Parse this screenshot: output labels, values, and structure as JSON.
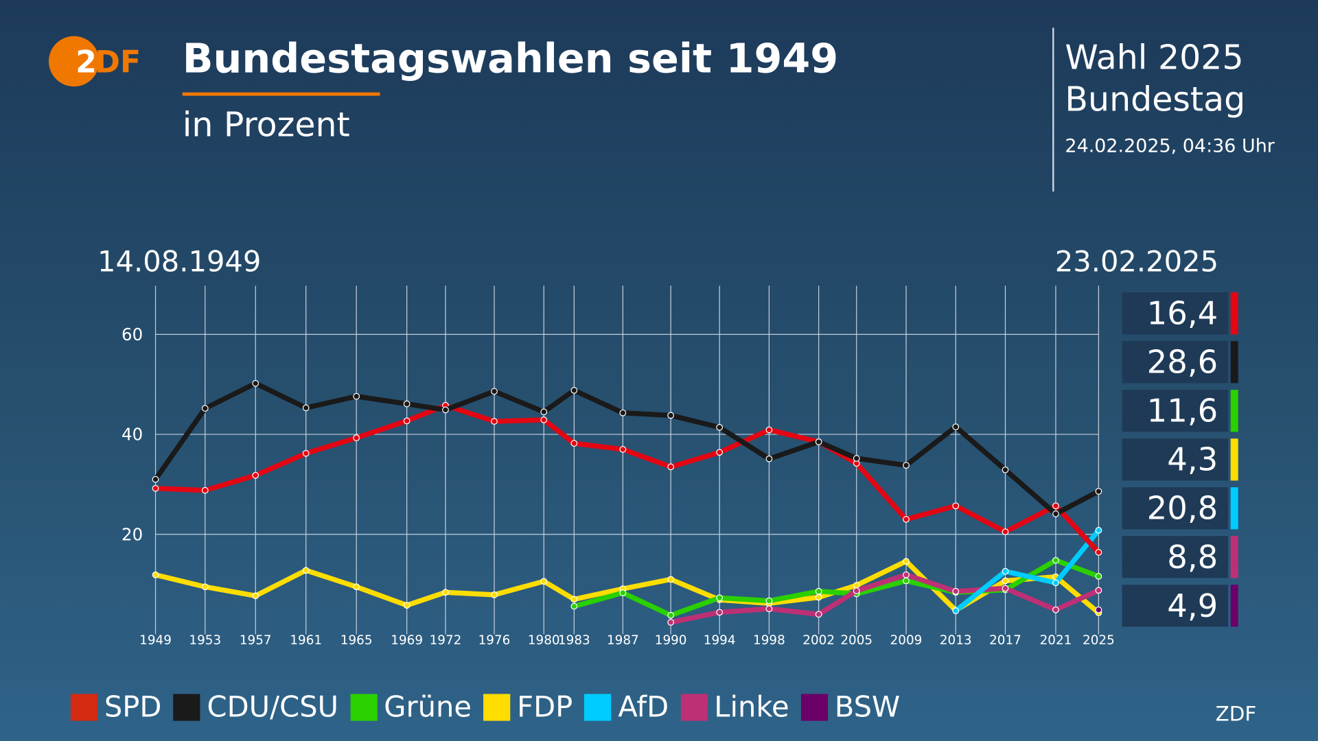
{
  "header": {
    "title": "Bundestagswahlen seit 1949",
    "subtitle": "in Prozent",
    "logo": "ZDF"
  },
  "info": {
    "line1": "Wahl 2025",
    "line2": "Bundestag",
    "timestamp": "24.02.2025, 04:36 Uhr"
  },
  "footer": {
    "source": "ZDF"
  },
  "chart_data": {
    "type": "line",
    "start_label": "14.08.1949",
    "end_label": "23.02.2025",
    "x": [
      1949,
      1953,
      1957,
      1961,
      1965,
      1969,
      1972,
      1976,
      1980,
      1983,
      1987,
      1990,
      1994,
      1998,
      2002,
      2005,
      2009,
      2013,
      2017,
      2021,
      2025
    ],
    "yticks": [
      20,
      40,
      60
    ],
    "ylim": [
      0,
      68
    ],
    "grid": true,
    "legend": "bottom",
    "series": [
      {
        "name": "SPD",
        "color": "#e30613",
        "values": [
          29.2,
          28.8,
          31.8,
          36.2,
          39.3,
          42.7,
          45.8,
          42.6,
          42.9,
          38.2,
          37.0,
          33.5,
          36.4,
          40.9,
          38.5,
          34.2,
          23.0,
          25.7,
          20.5,
          25.7,
          16.4
        ],
        "latest": "16,4"
      },
      {
        "name": "CDU/CSU",
        "color": "#1a1a1a",
        "values": [
          31.0,
          45.2,
          50.2,
          45.3,
          47.6,
          46.1,
          44.9,
          48.6,
          44.5,
          48.8,
          44.3,
          43.8,
          41.4,
          35.1,
          38.5,
          35.2,
          33.8,
          41.5,
          32.9,
          24.1,
          28.6
        ],
        "latest": "28,6"
      },
      {
        "name": "Grüne",
        "color": "#2ad000",
        "values": [
          null,
          null,
          null,
          null,
          null,
          null,
          null,
          null,
          null,
          5.6,
          8.3,
          3.8,
          7.3,
          6.7,
          8.6,
          8.1,
          10.7,
          8.4,
          8.9,
          14.8,
          11.6
        ],
        "latest": "11,6"
      },
      {
        "name": "FDP",
        "color": "#ffdd00",
        "values": [
          11.9,
          9.5,
          7.7,
          12.8,
          9.5,
          5.8,
          8.4,
          7.9,
          10.6,
          7.0,
          9.1,
          11.0,
          6.9,
          6.2,
          7.4,
          9.8,
          14.6,
          4.8,
          10.7,
          11.5,
          4.3
        ],
        "latest": "4,3"
      },
      {
        "name": "AfD",
        "color": "#00ccff",
        "values": [
          null,
          null,
          null,
          null,
          null,
          null,
          null,
          null,
          null,
          null,
          null,
          null,
          null,
          null,
          null,
          null,
          null,
          4.7,
          12.6,
          10.3,
          20.8
        ],
        "latest": "20,8"
      },
      {
        "name": "Linke",
        "color": "#be3075",
        "values": [
          null,
          null,
          null,
          null,
          null,
          null,
          null,
          null,
          null,
          null,
          null,
          2.4,
          4.4,
          5.1,
          4.0,
          8.7,
          11.9,
          8.6,
          9.2,
          4.9,
          8.8
        ],
        "latest": "8,8"
      },
      {
        "name": "BSW",
        "color": "#6a0068",
        "values": [
          null,
          null,
          null,
          null,
          null,
          null,
          null,
          null,
          null,
          null,
          null,
          null,
          null,
          null,
          null,
          null,
          null,
          null,
          null,
          null,
          4.9
        ],
        "latest": "4,9"
      }
    ]
  }
}
